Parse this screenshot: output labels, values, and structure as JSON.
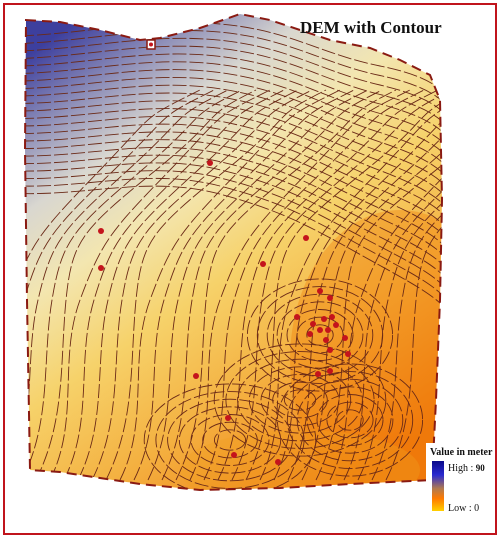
{
  "title": "DEM with Contour",
  "legend": {
    "title": "Value in meter",
    "high_label": "High",
    "high_value": "90",
    "low_label": "Low",
    "low_value": "0"
  },
  "colors": {
    "border": "#c0141c",
    "contour": "#6b2a17",
    "point": "#c4141c",
    "high": "#2f3fa8",
    "mid": "#d8d4c4",
    "low": "#f08a00"
  }
}
